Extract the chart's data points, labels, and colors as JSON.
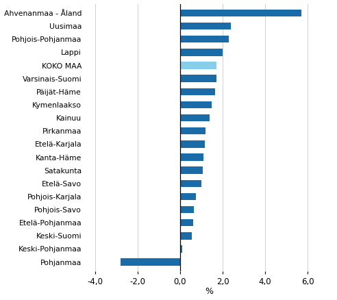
{
  "categories": [
    "Ahvenanmaa - Åland",
    "Uusimaa",
    "Pohjois-Pohjanmaa",
    "Lappi",
    "KOKO MAA",
    "Varsinais-Suomi",
    "Päijät-Häme",
    "Kymenlaakso",
    "Kainuu",
    "Pirkanmaa",
    "Etelä-Karjala",
    "Kanta-Häme",
    "Satakunta",
    "Etelä-Savo",
    "Pohjois-Karjala",
    "Pohjois-Savo",
    "Etelä-Pohjanmaa",
    "Keski-Suomi",
    "Keski-Pohjanmaa",
    "Pohjanmaa"
  ],
  "values": [
    5.7,
    2.4,
    2.3,
    2.0,
    1.7,
    1.7,
    1.65,
    1.5,
    1.4,
    1.2,
    1.15,
    1.1,
    1.05,
    1.0,
    0.75,
    0.65,
    0.6,
    0.55,
    0.1,
    -2.8
  ],
  "bar_colors": [
    "#1a6ca8",
    "#1a6ca8",
    "#1a6ca8",
    "#1a6ca8",
    "#87ceeb",
    "#1a6ca8",
    "#1a6ca8",
    "#1a6ca8",
    "#1a6ca8",
    "#1a6ca8",
    "#1a6ca8",
    "#1a6ca8",
    "#1a6ca8",
    "#1a6ca8",
    "#1a6ca8",
    "#1a6ca8",
    "#1a6ca8",
    "#1a6ca8",
    "#1a6ca8",
    "#1a6ca8"
  ],
  "xlim": [
    -4.5,
    7.2
  ],
  "xticks": [
    -4.0,
    -2.0,
    0.0,
    2.0,
    4.0,
    6.0
  ],
  "xtick_labels": [
    "-4,0",
    "-2,0",
    "0,0",
    "2,0",
    "4,0",
    "6,0"
  ],
  "xlabel": "%",
  "bar_height": 0.55,
  "background_color": "#ffffff",
  "grid_color": "#c8c8c8",
  "label_fontsize": 7.8,
  "tick_fontsize": 8.5
}
